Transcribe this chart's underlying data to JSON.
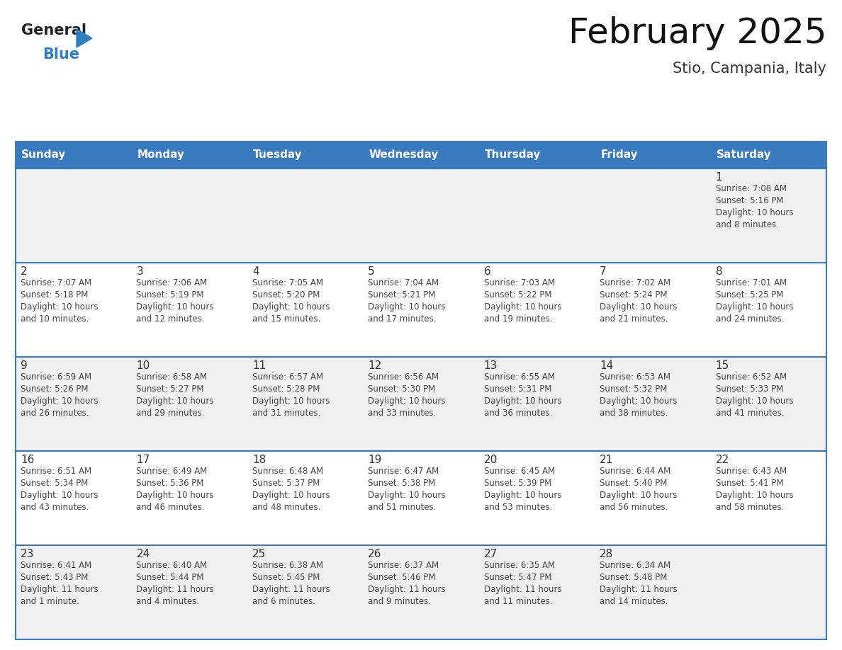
{
  "title": "February 2025",
  "subtitle": "Stio, Campania, Italy",
  "header_bg": "#3a7abf",
  "header_text": "#ffffff",
  "header_days": [
    "Sunday",
    "Monday",
    "Tuesday",
    "Wednesday",
    "Thursday",
    "Friday",
    "Saturday"
  ],
  "row_bg_even": "#f0f0f0",
  "row_bg_odd": "#ffffff",
  "cell_border": "#3a7abf",
  "day_number_color": "#333333",
  "info_text_color": "#444444",
  "title_color": "#111111",
  "subtitle_color": "#333333",
  "logo_general_color": "#222222",
  "logo_blue_color": "#2e7fc2",
  "calendar": [
    [
      {
        "day": null,
        "info": ""
      },
      {
        "day": null,
        "info": ""
      },
      {
        "day": null,
        "info": ""
      },
      {
        "day": null,
        "info": ""
      },
      {
        "day": null,
        "info": ""
      },
      {
        "day": null,
        "info": ""
      },
      {
        "day": 1,
        "info": "Sunrise: 7:08 AM\nSunset: 5:16 PM\nDaylight: 10 hours\nand 8 minutes."
      }
    ],
    [
      {
        "day": 2,
        "info": "Sunrise: 7:07 AM\nSunset: 5:18 PM\nDaylight: 10 hours\nand 10 minutes."
      },
      {
        "day": 3,
        "info": "Sunrise: 7:06 AM\nSunset: 5:19 PM\nDaylight: 10 hours\nand 12 minutes."
      },
      {
        "day": 4,
        "info": "Sunrise: 7:05 AM\nSunset: 5:20 PM\nDaylight: 10 hours\nand 15 minutes."
      },
      {
        "day": 5,
        "info": "Sunrise: 7:04 AM\nSunset: 5:21 PM\nDaylight: 10 hours\nand 17 minutes."
      },
      {
        "day": 6,
        "info": "Sunrise: 7:03 AM\nSunset: 5:22 PM\nDaylight: 10 hours\nand 19 minutes."
      },
      {
        "day": 7,
        "info": "Sunrise: 7:02 AM\nSunset: 5:24 PM\nDaylight: 10 hours\nand 21 minutes."
      },
      {
        "day": 8,
        "info": "Sunrise: 7:01 AM\nSunset: 5:25 PM\nDaylight: 10 hours\nand 24 minutes."
      }
    ],
    [
      {
        "day": 9,
        "info": "Sunrise: 6:59 AM\nSunset: 5:26 PM\nDaylight: 10 hours\nand 26 minutes."
      },
      {
        "day": 10,
        "info": "Sunrise: 6:58 AM\nSunset: 5:27 PM\nDaylight: 10 hours\nand 29 minutes."
      },
      {
        "day": 11,
        "info": "Sunrise: 6:57 AM\nSunset: 5:28 PM\nDaylight: 10 hours\nand 31 minutes."
      },
      {
        "day": 12,
        "info": "Sunrise: 6:56 AM\nSunset: 5:30 PM\nDaylight: 10 hours\nand 33 minutes."
      },
      {
        "day": 13,
        "info": "Sunrise: 6:55 AM\nSunset: 5:31 PM\nDaylight: 10 hours\nand 36 minutes."
      },
      {
        "day": 14,
        "info": "Sunrise: 6:53 AM\nSunset: 5:32 PM\nDaylight: 10 hours\nand 38 minutes."
      },
      {
        "day": 15,
        "info": "Sunrise: 6:52 AM\nSunset: 5:33 PM\nDaylight: 10 hours\nand 41 minutes."
      }
    ],
    [
      {
        "day": 16,
        "info": "Sunrise: 6:51 AM\nSunset: 5:34 PM\nDaylight: 10 hours\nand 43 minutes."
      },
      {
        "day": 17,
        "info": "Sunrise: 6:49 AM\nSunset: 5:36 PM\nDaylight: 10 hours\nand 46 minutes."
      },
      {
        "day": 18,
        "info": "Sunrise: 6:48 AM\nSunset: 5:37 PM\nDaylight: 10 hours\nand 48 minutes."
      },
      {
        "day": 19,
        "info": "Sunrise: 6:47 AM\nSunset: 5:38 PM\nDaylight: 10 hours\nand 51 minutes."
      },
      {
        "day": 20,
        "info": "Sunrise: 6:45 AM\nSunset: 5:39 PM\nDaylight: 10 hours\nand 53 minutes."
      },
      {
        "day": 21,
        "info": "Sunrise: 6:44 AM\nSunset: 5:40 PM\nDaylight: 10 hours\nand 56 minutes."
      },
      {
        "day": 22,
        "info": "Sunrise: 6:43 AM\nSunset: 5:41 PM\nDaylight: 10 hours\nand 58 minutes."
      }
    ],
    [
      {
        "day": 23,
        "info": "Sunrise: 6:41 AM\nSunset: 5:43 PM\nDaylight: 11 hours\nand 1 minute."
      },
      {
        "day": 24,
        "info": "Sunrise: 6:40 AM\nSunset: 5:44 PM\nDaylight: 11 hours\nand 4 minutes."
      },
      {
        "day": 25,
        "info": "Sunrise: 6:38 AM\nSunset: 5:45 PM\nDaylight: 11 hours\nand 6 minutes."
      },
      {
        "day": 26,
        "info": "Sunrise: 6:37 AM\nSunset: 5:46 PM\nDaylight: 11 hours\nand 9 minutes."
      },
      {
        "day": 27,
        "info": "Sunrise: 6:35 AM\nSunset: 5:47 PM\nDaylight: 11 hours\nand 11 minutes."
      },
      {
        "day": 28,
        "info": "Sunrise: 6:34 AM\nSunset: 5:48 PM\nDaylight: 11 hours\nand 14 minutes."
      },
      {
        "day": null,
        "info": ""
      }
    ]
  ]
}
